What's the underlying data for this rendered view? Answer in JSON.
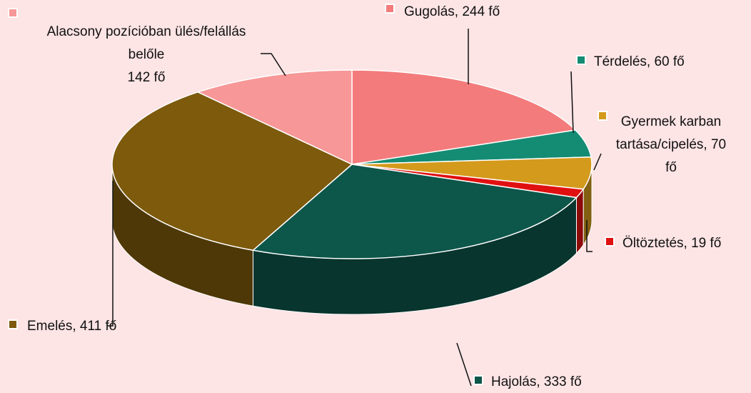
{
  "chart_data": {
    "type": "pie3d",
    "values": [
      244,
      60,
      70,
      19,
      333,
      411,
      142
    ],
    "value_labels": [
      [
        "Gugolás, 244 fő"
      ],
      [
        "Térdelés, 60 fő"
      ],
      [
        "Gyermek karban",
        "tartása/cipelés, 70",
        "fő"
      ],
      [
        "Öltöztetés, 19 fő"
      ],
      [
        "Hajolás, 333 fő"
      ],
      [
        "Emelés, 411 fő"
      ],
      [
        "Alacsony pozícióban ülés/felállás",
        "belőle",
        "142 fő"
      ]
    ],
    "colors": [
      "#f47b7b",
      "#148c73",
      "#d49a1c",
      "#e01010",
      "#0d564a",
      "#7d5a0c",
      "#f79797"
    ]
  }
}
